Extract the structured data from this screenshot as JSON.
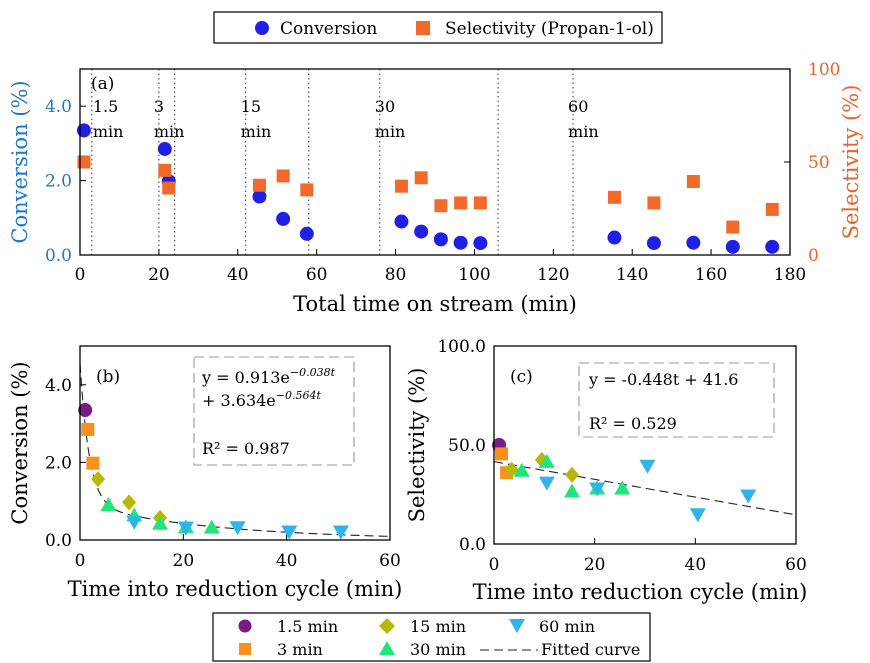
{
  "colors": {
    "conversion": "#1f1fe6",
    "selectivity": "#f26a2a",
    "left_axis": "#1f78c8",
    "right_axis": "#e8642a",
    "m1_5": "#7b1a87",
    "m3": "#f7921e",
    "m15": "#b8b800",
    "m30": "#1fe67a",
    "m60": "#2fb5ea",
    "fit": "#222222",
    "frame": "#000000",
    "dotted": "#333333",
    "dashed_box": "#999999"
  },
  "top_legend": {
    "conversion": "Conversion",
    "selectivity": "Selectivity (Propan-1-ol)"
  },
  "bottom_legend": {
    "m1_5": "1.5 min",
    "m15": "15 min",
    "m60": "60 min",
    "m3": "3 min",
    "m30": "30 min",
    "fit": "Fitted curve"
  },
  "chart_data": [
    {
      "id": "a",
      "type": "scatter",
      "panel_label": "(a)",
      "xlabel": "Total time on stream (min)",
      "ylabel_left": "Conversion (%)",
      "ylabel_right": "Selectivity (%)",
      "xlim": [
        0,
        180
      ],
      "ylim_left": [
        0,
        5
      ],
      "ylim_right": [
        0,
        100
      ],
      "xticks": [
        0,
        20,
        40,
        60,
        80,
        100,
        120,
        140,
        160,
        180
      ],
      "yticks_left": [
        {
          "v": 0,
          "label": "0.0"
        },
        {
          "v": 2,
          "label": "2.0"
        },
        {
          "v": 4,
          "label": "4.0"
        }
      ],
      "yticks_right": [
        {
          "v": 0,
          "label": "0"
        },
        {
          "v": 50,
          "label": "50"
        },
        {
          "v": 100,
          "label": "100"
        }
      ],
      "cycle_lines": [
        3,
        20,
        24,
        42,
        58,
        76,
        106,
        125
      ],
      "cycle_labels": [
        {
          "x": 3,
          "num": "1.5",
          "unit": "min"
        },
        {
          "x": 20,
          "num": "3",
          "unit": "min"
        },
        {
          "x": 42,
          "num": "15",
          "unit": "min"
        },
        {
          "x": 76,
          "num": "30",
          "unit": "min"
        },
        {
          "x": 125,
          "num": "60",
          "unit": "min"
        }
      ],
      "series": [
        {
          "name": "Conversion",
          "axis": "left",
          "points": [
            [
              1,
              3.35
            ],
            [
              21.5,
              2.85
            ],
            [
              22.5,
              1.98
            ],
            [
              45.5,
              1.57
            ],
            [
              51.5,
              0.97
            ],
            [
              57.5,
              0.57
            ],
            [
              81.5,
              0.9
            ],
            [
              86.5,
              0.63
            ],
            [
              91.5,
              0.42
            ],
            [
              96.5,
              0.33
            ],
            [
              101.5,
              0.32
            ],
            [
              135.5,
              0.47
            ],
            [
              145.5,
              0.32
            ],
            [
              155.5,
              0.33
            ],
            [
              165.5,
              0.22
            ],
            [
              175.5,
              0.22
            ]
          ]
        },
        {
          "name": "Selectivity (Propan-1-ol)",
          "axis": "right",
          "points": [
            [
              1,
              50
            ],
            [
              21.5,
              45.5
            ],
            [
              22.5,
              36
            ],
            [
              45.5,
              37.5
            ],
            [
              51.5,
              42.5
            ],
            [
              57.5,
              35
            ],
            [
              81.5,
              37
            ],
            [
              86.5,
              41.5
            ],
            [
              91.5,
              26.5
            ],
            [
              96.5,
              28
            ],
            [
              101.5,
              28
            ],
            [
              135.5,
              31
            ],
            [
              145.5,
              28
            ],
            [
              155.5,
              39.5
            ],
            [
              165.5,
              15
            ],
            [
              175.5,
              24.5
            ]
          ]
        }
      ]
    },
    {
      "id": "b",
      "type": "scatter",
      "panel_label": "(b)",
      "xlabel": "Time into reduction cycle (min)",
      "ylabel": "Conversion (%)",
      "xlim": [
        0,
        60
      ],
      "ylim": [
        0,
        5
      ],
      "xticks": [
        0,
        20,
        40,
        60
      ],
      "yticks": [
        {
          "v": 0,
          "label": "0.0"
        },
        {
          "v": 2,
          "label": "2.0"
        },
        {
          "v": 4,
          "label": "4.0"
        }
      ],
      "fit_text": {
        "line1_a": "y = 0.913e",
        "line1_exp": "−0.038t",
        "line2_a": "+ 3.634e",
        "line2_exp": "−0.564t",
        "r2": "R² = 0.987"
      },
      "fit": {
        "type": "biexponential",
        "a1": 0.913,
        "k1": 0.038,
        "a2": 3.634,
        "k2": 0.564
      },
      "series": [
        {
          "name": "1.5 min",
          "marker": "circle",
          "points": [
            [
              1,
              3.35
            ]
          ]
        },
        {
          "name": "3 min",
          "marker": "square",
          "points": [
            [
              1.5,
              2.85
            ],
            [
              2.5,
              1.98
            ]
          ]
        },
        {
          "name": "15 min",
          "marker": "diamond",
          "points": [
            [
              3.5,
              1.57
            ],
            [
              9.5,
              0.97
            ],
            [
              15.5,
              0.57
            ]
          ]
        },
        {
          "name": "30 min",
          "marker": "triangle-up",
          "points": [
            [
              5.5,
              0.9
            ],
            [
              10.5,
              0.63
            ],
            [
              15.5,
              0.42
            ],
            [
              20.5,
              0.33
            ],
            [
              25.5,
              0.32
            ]
          ]
        },
        {
          "name": "60 min",
          "marker": "triangle-down",
          "points": [
            [
              10.5,
              0.47
            ],
            [
              20.5,
              0.32
            ],
            [
              30.5,
              0.33
            ],
            [
              40.5,
              0.22
            ],
            [
              50.5,
              0.22
            ]
          ]
        }
      ]
    },
    {
      "id": "c",
      "type": "scatter",
      "panel_label": "(c)",
      "xlabel": "Time into reduction cycle (min)",
      "ylabel": "Selectivity (%)",
      "xlim": [
        0,
        60
      ],
      "ylim": [
        0,
        100
      ],
      "xticks": [
        0,
        20,
        40,
        60
      ],
      "yticks": [
        {
          "v": 0,
          "label": "0.0"
        },
        {
          "v": 50,
          "label": "50.0"
        },
        {
          "v": 100,
          "label": "100.0"
        }
      ],
      "fit_text": {
        "line1": "y = -0.448t + 41.6",
        "r2": "R² = 0.529"
      },
      "fit": {
        "type": "linear",
        "slope": -0.448,
        "intercept": 41.6
      },
      "series": [
        {
          "name": "1.5 min",
          "marker": "circle",
          "points": [
            [
              1,
              50
            ]
          ]
        },
        {
          "name": "3 min",
          "marker": "square",
          "points": [
            [
              1.5,
              45.5
            ],
            [
              2.5,
              36
            ]
          ]
        },
        {
          "name": "15 min",
          "marker": "diamond",
          "points": [
            [
              3.5,
              37.5
            ],
            [
              9.5,
              42.5
            ],
            [
              15.5,
              35
            ]
          ]
        },
        {
          "name": "30 min",
          "marker": "triangle-up",
          "points": [
            [
              5.5,
              37
            ],
            [
              10.5,
              41.5
            ],
            [
              15.5,
              26.5
            ],
            [
              20.5,
              28
            ],
            [
              25.5,
              28
            ]
          ]
        },
        {
          "name": "60 min",
          "marker": "triangle-down",
          "points": [
            [
              10.5,
              31
            ],
            [
              20.5,
              28
            ],
            [
              30.5,
              39.5
            ],
            [
              40.5,
              15
            ],
            [
              50.5,
              24.5
            ]
          ]
        }
      ]
    }
  ]
}
